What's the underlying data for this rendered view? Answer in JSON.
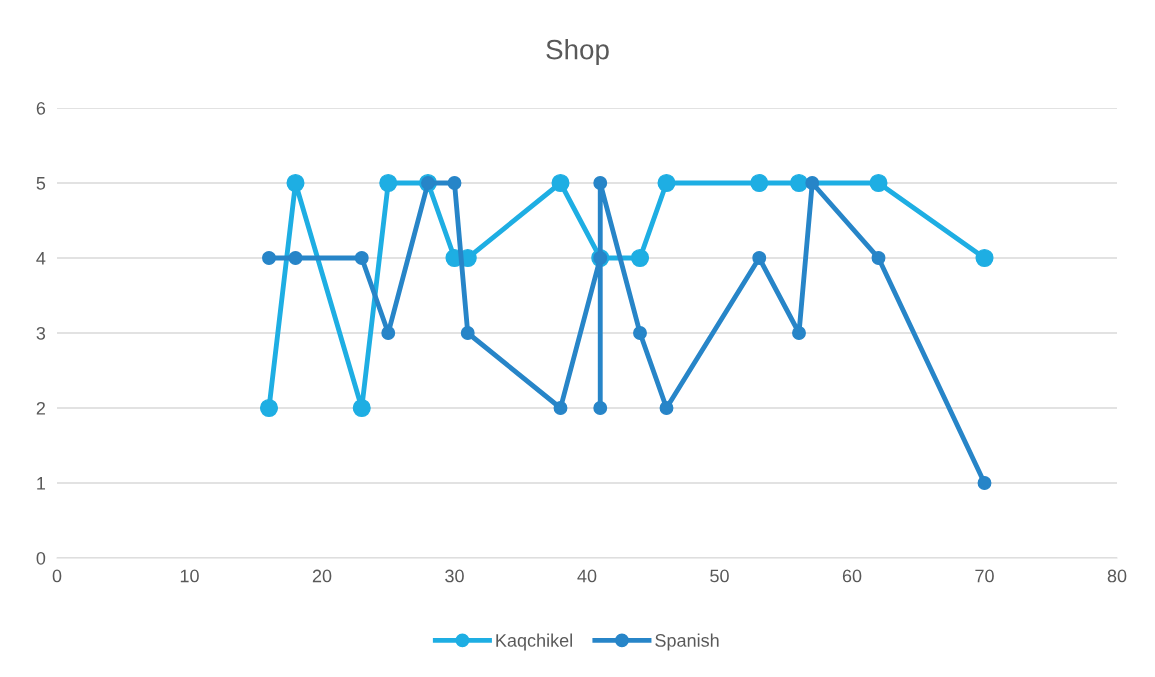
{
  "chart_data": {
    "type": "line",
    "title": "Shop",
    "series": [
      {
        "name": "Kaqchikel",
        "color": "#1eaee3",
        "x": [
          16,
          18,
          23,
          25,
          28,
          30,
          31,
          38,
          41,
          44,
          46,
          53,
          56,
          62,
          70
        ],
        "values": [
          2,
          5,
          2,
          5,
          5,
          4,
          4,
          5,
          4,
          4,
          5,
          5,
          5,
          5,
          4
        ]
      },
      {
        "name": "Spanish",
        "color": "#2785c8",
        "x": [
          16,
          18,
          23,
          25,
          28,
          30,
          31,
          38,
          41,
          41,
          41,
          44,
          46,
          53,
          56,
          57,
          62,
          70
        ],
        "values": [
          4,
          4,
          4,
          3,
          5,
          5,
          3,
          2,
          4,
          2,
          5,
          3,
          2,
          4,
          3,
          5,
          4,
          1
        ]
      }
    ],
    "xlim": [
      0,
      80
    ],
    "xticks": [
      0,
      10,
      20,
      30,
      40,
      50,
      60,
      70,
      80
    ],
    "ylim": [
      0,
      6
    ],
    "yticks": [
      0,
      1,
      2,
      3,
      4,
      5,
      6
    ],
    "grid": "y",
    "legend": "bottom",
    "marker": "circle",
    "line_style": "solid"
  }
}
